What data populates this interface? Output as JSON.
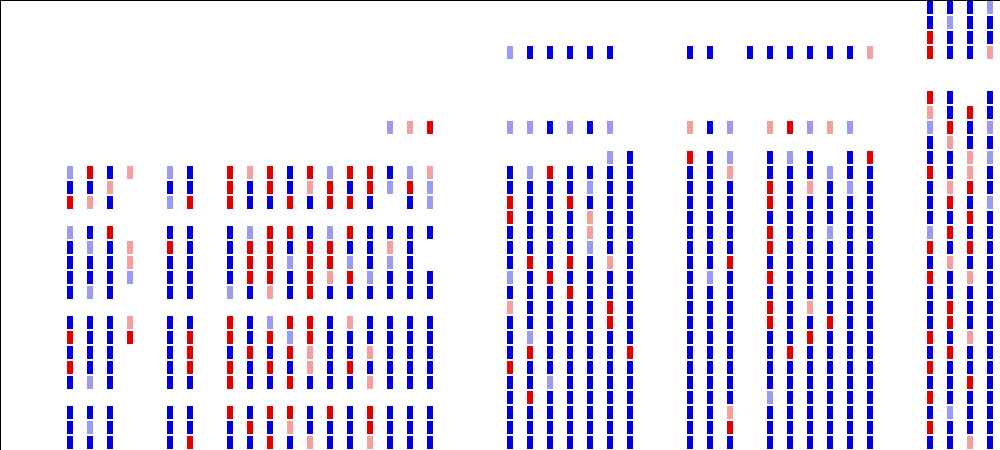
{
  "chart_data": {
    "type": "heatmap",
    "zlim": [
      -2,
      2
    ],
    "colors": [
      "#0000e0",
      "#9a9af0",
      "#ffffff",
      "#f4a0a0",
      "#e00000"
    ],
    "values": [
      [
        0,
        0,
        0,
        0,
        0,
        0,
        0,
        0,
        0,
        0,
        0,
        0,
        0,
        0,
        0,
        0,
        0,
        0,
        0,
        0,
        0,
        0,
        0,
        0,
        0,
        0,
        0,
        0,
        0,
        0,
        0,
        0,
        0,
        0,
        0,
        0,
        0,
        0,
        0,
        0,
        0,
        0,
        0,
        0,
        0,
        0,
        -2,
        -2,
        -2,
        -1
      ],
      [
        0,
        0,
        0,
        0,
        0,
        0,
        0,
        0,
        0,
        0,
        0,
        0,
        0,
        0,
        0,
        0,
        0,
        0,
        0,
        0,
        0,
        0,
        0,
        0,
        0,
        0,
        0,
        0,
        0,
        0,
        0,
        0,
        0,
        0,
        0,
        0,
        0,
        0,
        0,
        0,
        0,
        0,
        0,
        0,
        0,
        0,
        -2,
        -1,
        -2,
        -2
      ],
      [
        0,
        0,
        0,
        0,
        0,
        0,
        0,
        0,
        0,
        0,
        0,
        0,
        0,
        0,
        0,
        0,
        0,
        0,
        0,
        0,
        0,
        0,
        0,
        0,
        0,
        0,
        0,
        0,
        0,
        0,
        0,
        0,
        0,
        0,
        0,
        0,
        0,
        0,
        0,
        0,
        0,
        0,
        0,
        0,
        0,
        0,
        2,
        -2,
        -2,
        -2
      ],
      [
        0,
        0,
        0,
        0,
        0,
        0,
        0,
        0,
        0,
        0,
        0,
        0,
        0,
        0,
        0,
        0,
        0,
        0,
        0,
        0,
        0,
        0,
        0,
        0,
        0,
        -1,
        -2,
        -2,
        -2,
        -2,
        -2,
        0,
        0,
        0,
        -2,
        -2,
        0,
        -2,
        -2,
        -2,
        -2,
        -2,
        -2,
        1,
        0,
        0,
        2,
        -2,
        -2,
        1
      ],
      [
        0,
        0,
        0,
        0,
        0,
        0,
        0,
        0,
        0,
        0,
        0,
        0,
        0,
        0,
        0,
        0,
        0,
        0,
        0,
        0,
        0,
        0,
        0,
        0,
        0,
        0,
        0,
        0,
        0,
        0,
        0,
        0,
        0,
        0,
        0,
        0,
        0,
        0,
        0,
        0,
        0,
        0,
        0,
        0,
        0,
        0,
        0,
        0,
        0,
        0
      ],
      [
        0,
        0,
        0,
        0,
        0,
        0,
        0,
        0,
        0,
        0,
        0,
        0,
        0,
        0,
        0,
        0,
        0,
        0,
        0,
        0,
        0,
        0,
        0,
        0,
        0,
        0,
        0,
        0,
        0,
        0,
        0,
        0,
        0,
        0,
        0,
        0,
        0,
        0,
        0,
        0,
        0,
        0,
        0,
        0,
        0,
        0,
        0,
        0,
        0,
        0
      ],
      [
        0,
        0,
        0,
        0,
        0,
        0,
        0,
        0,
        0,
        0,
        0,
        0,
        0,
        0,
        0,
        0,
        0,
        0,
        0,
        0,
        0,
        0,
        0,
        0,
        0,
        0,
        0,
        0,
        0,
        0,
        0,
        0,
        0,
        0,
        0,
        0,
        0,
        0,
        0,
        0,
        0,
        0,
        0,
        0,
        0,
        0,
        2,
        -2,
        0,
        -2
      ],
      [
        0,
        0,
        0,
        0,
        0,
        0,
        0,
        0,
        0,
        0,
        0,
        0,
        0,
        0,
        0,
        0,
        0,
        0,
        0,
        0,
        0,
        0,
        0,
        0,
        0,
        0,
        0,
        0,
        0,
        0,
        0,
        0,
        0,
        0,
        0,
        0,
        0,
        0,
        0,
        0,
        0,
        0,
        0,
        0,
        0,
        0,
        1,
        -2,
        2,
        -2
      ],
      [
        0,
        0,
        0,
        0,
        0,
        0,
        0,
        0,
        0,
        0,
        0,
        0,
        0,
        0,
        0,
        0,
        0,
        0,
        0,
        -1,
        1,
        2,
        0,
        0,
        0,
        -1,
        -1,
        -2,
        -1,
        -2,
        -1,
        0,
        0,
        0,
        1,
        -2,
        -1,
        0,
        1,
        2,
        -1,
        1,
        -1,
        0,
        0,
        0,
        -1,
        2,
        -2,
        -1
      ],
      [
        0,
        0,
        0,
        0,
        0,
        0,
        0,
        0,
        0,
        0,
        0,
        0,
        0,
        0,
        0,
        0,
        0,
        0,
        0,
        0,
        0,
        0,
        0,
        0,
        0,
        0,
        0,
        0,
        0,
        0,
        0,
        0,
        0,
        0,
        0,
        0,
        0,
        0,
        0,
        0,
        0,
        0,
        0,
        0,
        0,
        0,
        -2,
        1,
        -2,
        -2
      ],
      [
        0,
        0,
        0,
        0,
        0,
        0,
        0,
        0,
        0,
        0,
        0,
        0,
        0,
        0,
        0,
        0,
        0,
        0,
        0,
        0,
        0,
        0,
        0,
        0,
        0,
        0,
        0,
        0,
        0,
        0,
        -1,
        -2,
        0,
        0,
        2,
        -2,
        -1,
        0,
        -2,
        -1,
        -2,
        0,
        -2,
        2,
        0,
        0,
        -2,
        -2,
        1,
        -1
      ],
      [
        0,
        0,
        0,
        -1,
        2,
        -2,
        1,
        0,
        -1,
        -2,
        0,
        2,
        1,
        2,
        -2,
        2,
        -1,
        2,
        2,
        -2,
        -1,
        1,
        0,
        0,
        0,
        -2,
        -1,
        2,
        -2,
        -2,
        -2,
        -2,
        0,
        0,
        -2,
        -2,
        1,
        0,
        -2,
        -2,
        -2,
        -1,
        -2,
        -2,
        0,
        0,
        2,
        -2,
        1,
        -2
      ],
      [
        0,
        0,
        0,
        -2,
        -2,
        1,
        0,
        0,
        -2,
        -2,
        0,
        2,
        -2,
        2,
        -2,
        1,
        2,
        -2,
        2,
        -1,
        2,
        -1,
        0,
        0,
        0,
        -2,
        -2,
        -2,
        -2,
        -1,
        -2,
        -2,
        0,
        0,
        -2,
        -2,
        -2,
        0,
        2,
        -2,
        1,
        -2,
        -1,
        -2,
        0,
        0,
        -2,
        1,
        2,
        -2
      ],
      [
        0,
        0,
        0,
        2,
        1,
        -2,
        0,
        0,
        -1,
        2,
        0,
        2,
        -2,
        -2,
        2,
        -2,
        2,
        2,
        -2,
        0,
        -2,
        -1,
        0,
        0,
        0,
        2,
        -2,
        -2,
        2,
        -2,
        -2,
        -2,
        0,
        0,
        -2,
        -2,
        -2,
        0,
        2,
        -2,
        -2,
        -2,
        -2,
        -2,
        0,
        0,
        -2,
        2,
        -2,
        -1
      ],
      [
        0,
        0,
        0,
        0,
        0,
        0,
        0,
        0,
        0,
        0,
        0,
        0,
        0,
        0,
        0,
        0,
        0,
        0,
        0,
        0,
        0,
        0,
        0,
        0,
        0,
        2,
        -2,
        -2,
        -2,
        1,
        -2,
        -2,
        0,
        0,
        -2,
        -2,
        -2,
        0,
        -2,
        -2,
        -2,
        -2,
        -2,
        -2,
        0,
        0,
        -2,
        -2,
        2,
        -2
      ],
      [
        0,
        0,
        0,
        -1,
        -2,
        2,
        0,
        0,
        -2,
        -2,
        0,
        -2,
        -1,
        2,
        2,
        -2,
        -1,
        2,
        -2,
        -2,
        -2,
        -2,
        0,
        0,
        0,
        -2,
        -2,
        -2,
        -2,
        1,
        -2,
        -2,
        0,
        0,
        -2,
        -2,
        -2,
        0,
        2,
        -2,
        -2,
        -1,
        -2,
        -2,
        0,
        0,
        -1,
        2,
        -2,
        -2
      ],
      [
        0,
        0,
        0,
        -2,
        -1,
        -2,
        1,
        0,
        2,
        -2,
        0,
        -2,
        2,
        2,
        -2,
        2,
        2,
        -2,
        -2,
        1,
        -2,
        0,
        0,
        0,
        0,
        -2,
        -2,
        -2,
        -2,
        -1,
        -2,
        -2,
        0,
        0,
        -2,
        -2,
        -2,
        0,
        2,
        -2,
        -2,
        -2,
        -2,
        -2,
        0,
        0,
        2,
        -2,
        2,
        -2
      ],
      [
        0,
        0,
        0,
        -2,
        -2,
        -2,
        1,
        0,
        -2,
        -2,
        0,
        -2,
        2,
        2,
        -1,
        2,
        2,
        -1,
        -2,
        -1,
        -2,
        0,
        0,
        0,
        0,
        -2,
        2,
        -2,
        2,
        -2,
        1,
        -2,
        0,
        0,
        -2,
        -2,
        2,
        0,
        -2,
        -2,
        -2,
        -2,
        -2,
        -2,
        0,
        0,
        -2,
        1,
        -2,
        -2
      ],
      [
        0,
        0,
        0,
        -2,
        -2,
        -2,
        -1,
        0,
        -2,
        -2,
        0,
        -2,
        2,
        2,
        -2,
        2,
        1,
        2,
        -1,
        -2,
        -2,
        -2,
        0,
        0,
        0,
        -1,
        -2,
        2,
        -2,
        -2,
        -2,
        -2,
        0,
        0,
        -2,
        -1,
        -2,
        0,
        2,
        -2,
        -2,
        -2,
        -2,
        -2,
        0,
        0,
        2,
        -2,
        1,
        -2
      ],
      [
        0,
        0,
        0,
        -2,
        -1,
        -2,
        0,
        0,
        -2,
        -2,
        0,
        -1,
        -2,
        1,
        -2,
        2,
        -2,
        -2,
        -2,
        -2,
        -2,
        -2,
        0,
        0,
        0,
        -2,
        -2,
        -2,
        2,
        -2,
        -2,
        -2,
        0,
        0,
        -2,
        -2,
        -2,
        0,
        -2,
        -2,
        -2,
        -2,
        -2,
        -2,
        0,
        0,
        -2,
        -2,
        -2,
        -2
      ],
      [
        0,
        0,
        0,
        0,
        0,
        0,
        0,
        0,
        0,
        0,
        0,
        0,
        0,
        0,
        0,
        0,
        0,
        0,
        0,
        0,
        0,
        0,
        0,
        0,
        0,
        1,
        -2,
        -2,
        -2,
        -2,
        2,
        -2,
        0,
        0,
        -2,
        -2,
        -2,
        0,
        2,
        -2,
        1,
        -2,
        -2,
        -2,
        0,
        0,
        -2,
        2,
        -2,
        -2
      ],
      [
        0,
        0,
        0,
        -2,
        -2,
        -2,
        1,
        0,
        -2,
        -2,
        0,
        2,
        -2,
        -1,
        2,
        2,
        -2,
        1,
        -2,
        -2,
        -2,
        -2,
        0,
        0,
        0,
        -2,
        -2,
        -2,
        -2,
        -2,
        2,
        -2,
        0,
        0,
        -2,
        -2,
        -2,
        0,
        2,
        -2,
        -2,
        2,
        -2,
        -2,
        0,
        0,
        -2,
        2,
        -2,
        -2
      ],
      [
        0,
        0,
        0,
        2,
        -2,
        -2,
        2,
        0,
        -2,
        2,
        0,
        2,
        -2,
        2,
        -1,
        2,
        -2,
        -2,
        -2,
        -2,
        -2,
        -2,
        0,
        0,
        0,
        -2,
        -1,
        -2,
        -2,
        -2,
        -2,
        -2,
        0,
        0,
        -2,
        -2,
        -2,
        0,
        -2,
        -2,
        2,
        -2,
        -2,
        -2,
        0,
        0,
        2,
        -2,
        1,
        -2
      ],
      [
        0,
        0,
        0,
        -2,
        -2,
        -2,
        0,
        0,
        -2,
        2,
        0,
        -2,
        2,
        -2,
        2,
        1,
        -2,
        -2,
        1,
        -2,
        -2,
        -2,
        0,
        0,
        0,
        -2,
        2,
        -2,
        -2,
        -2,
        -2,
        2,
        0,
        0,
        -2,
        -2,
        -2,
        0,
        -2,
        2,
        -2,
        -2,
        -2,
        -2,
        0,
        0,
        -2,
        2,
        -2,
        -2
      ],
      [
        0,
        0,
        0,
        2,
        -2,
        -2,
        0,
        0,
        -2,
        2,
        0,
        2,
        -2,
        2,
        -2,
        1,
        -2,
        2,
        -2,
        -2,
        -2,
        -2,
        0,
        0,
        0,
        2,
        -2,
        -2,
        -2,
        -2,
        -2,
        -2,
        0,
        0,
        -2,
        -2,
        -2,
        0,
        -2,
        -2,
        -2,
        -2,
        -2,
        -2,
        0,
        0,
        2,
        -2,
        -2,
        -2
      ],
      [
        0,
        0,
        0,
        -2,
        -1,
        -2,
        0,
        0,
        -2,
        -2,
        0,
        2,
        -2,
        -2,
        2,
        -2,
        -2,
        -2,
        1,
        -2,
        -2,
        -2,
        0,
        0,
        0,
        -2,
        -2,
        -1,
        -2,
        -2,
        -2,
        -2,
        0,
        0,
        -2,
        -2,
        -2,
        0,
        -2,
        -2,
        -2,
        -2,
        -2,
        -2,
        0,
        0,
        -2,
        -2,
        2,
        -2
      ],
      [
        0,
        0,
        0,
        0,
        0,
        0,
        0,
        0,
        0,
        0,
        0,
        0,
        0,
        0,
        0,
        0,
        0,
        0,
        0,
        0,
        0,
        0,
        0,
        0,
        0,
        -2,
        2,
        -2,
        -2,
        -2,
        -2,
        -2,
        0,
        0,
        -2,
        -2,
        -2,
        0,
        -1,
        -2,
        -2,
        -2,
        -2,
        -2,
        0,
        0,
        2,
        -2,
        -2,
        -2
      ],
      [
        0,
        0,
        0,
        -2,
        -2,
        -2,
        0,
        0,
        -2,
        -2,
        0,
        2,
        -2,
        2,
        2,
        -2,
        2,
        -2,
        2,
        -2,
        -2,
        -2,
        0,
        0,
        0,
        -2,
        -2,
        -2,
        -2,
        -2,
        -2,
        -2,
        0,
        0,
        -2,
        -2,
        1,
        0,
        -2,
        -2,
        -2,
        -2,
        -2,
        -2,
        0,
        0,
        -2,
        -1,
        -2,
        -2
      ],
      [
        0,
        0,
        0,
        -2,
        -1,
        -2,
        0,
        0,
        -2,
        -2,
        0,
        -2,
        2,
        -2,
        1,
        -2,
        -2,
        -2,
        2,
        -2,
        -2,
        -2,
        0,
        0,
        0,
        -2,
        -2,
        -2,
        -2,
        -2,
        -2,
        -2,
        0,
        0,
        -2,
        -2,
        2,
        0,
        -2,
        -2,
        -2,
        -2,
        -2,
        -2,
        0,
        0,
        2,
        -2,
        -2,
        -2
      ],
      [
        0,
        0,
        0,
        -2,
        -2,
        -2,
        0,
        0,
        -2,
        2,
        0,
        -2,
        -2,
        2,
        -2,
        1,
        -2,
        -2,
        1,
        -2,
        -2,
        -2,
        0,
        0,
        0,
        -2,
        -2,
        -2,
        -2,
        -2,
        -2,
        -2,
        0,
        0,
        -2,
        -2,
        -2,
        0,
        -2,
        -2,
        -2,
        -2,
        -2,
        -2,
        0,
        0,
        -2,
        -2,
        1,
        -2
      ]
    ]
  }
}
